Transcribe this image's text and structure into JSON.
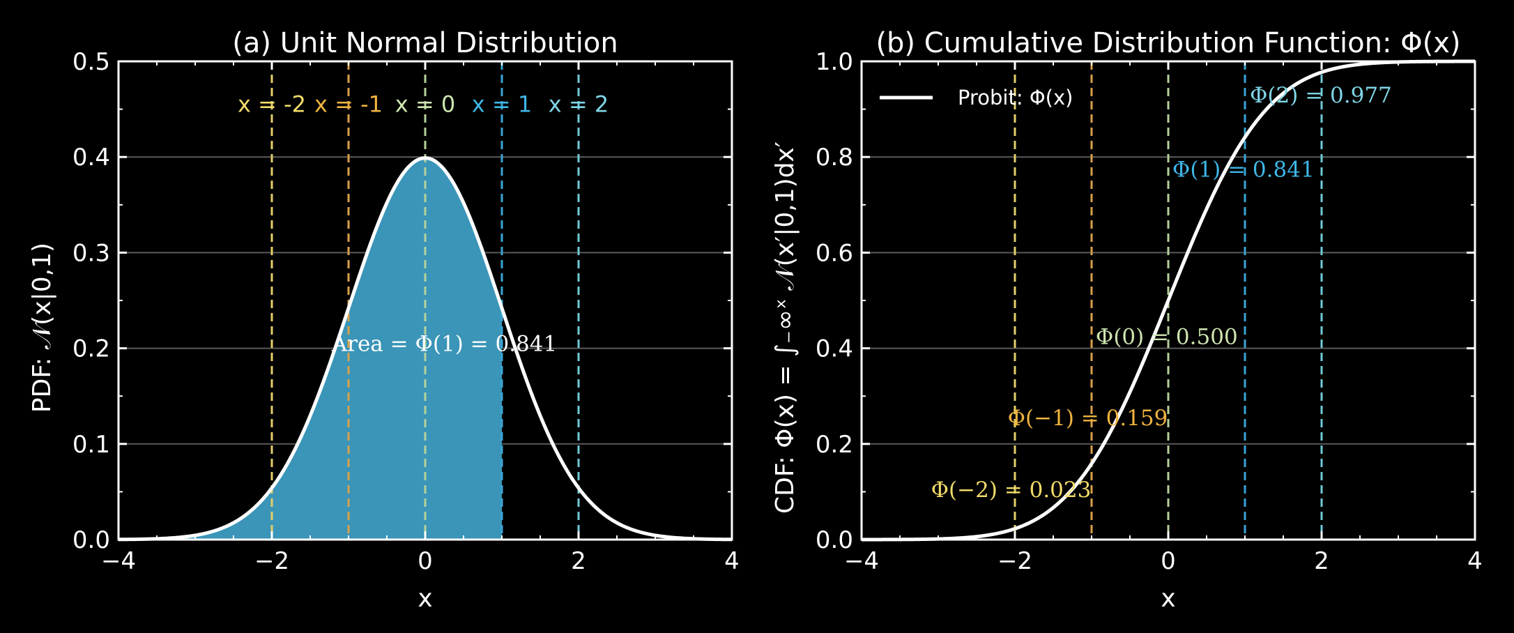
{
  "colors": {
    "background": "#000000",
    "curve": "#ffffff",
    "fill": "#3a95b8",
    "grid": "#5a5a5a",
    "line_m2": "#e3cf6a",
    "line_m1": "#d9a14a",
    "line_0": "#b5d19a",
    "line_1": "#3aa5d6",
    "line_2": "#6fcad6",
    "annot_m2": "#f2dc6a",
    "annot_m1": "#f0b43f",
    "annot_0": "#cfe6b0",
    "annot_1": "#3fb7e8",
    "annot_2": "#7fd6e6"
  },
  "chart_data": [
    {
      "type": "area",
      "title": "(a) Unit Normal Distribution",
      "xlabel": "x",
      "ylabel": "PDF: 𝒩(x|0,1)",
      "xlim": [
        -4,
        4
      ],
      "ylim": [
        0,
        0.5
      ],
      "xticks": [
        -4,
        -2,
        0,
        2,
        4
      ],
      "xtick_labels": [
        "−4",
        "−2",
        "0",
        "2",
        "4"
      ],
      "yticks": [
        0.0,
        0.1,
        0.2,
        0.3,
        0.4,
        0.5
      ],
      "ytick_labels": [
        "0.0",
        "0.1",
        "0.2",
        "0.3",
        "0.4",
        "0.5"
      ],
      "grid": "horizontal",
      "series": [
        {
          "x": [
            -4.0,
            -3.5,
            -3.0,
            -2.5,
            -2.0,
            -1.5,
            -1.0,
            -0.5,
            0.0,
            0.5,
            1.0,
            1.5,
            2.0,
            2.5,
            3.0,
            3.5,
            4.0
          ],
          "y": [
            0.0001,
            0.0009,
            0.0044,
            0.0175,
            0.054,
            0.1295,
            0.242,
            0.3521,
            0.3989,
            0.3521,
            0.242,
            0.1295,
            0.054,
            0.0175,
            0.0044,
            0.0009,
            0.0001
          ]
        }
      ],
      "shaded_region": [
        -4,
        1
      ],
      "vlines": [
        {
          "x": -2,
          "label": "x = -2",
          "color_key": "line_m2",
          "label_color_key": "annot_m2"
        },
        {
          "x": -1,
          "label": "x = -1",
          "color_key": "line_m1",
          "label_color_key": "annot_m1"
        },
        {
          "x": 0,
          "label": "x = 0",
          "color_key": "line_0",
          "label_color_key": "annot_0"
        },
        {
          "x": 1,
          "label": "x = 1",
          "color_key": "line_1",
          "label_color_key": "annot_1"
        },
        {
          "x": 2,
          "label": "x = 2",
          "color_key": "line_2",
          "label_color_key": "annot_2"
        }
      ],
      "vline_label_y": 0.455,
      "annotations": [
        {
          "text": "Area = Φ(1) = 0.841",
          "x": 0.25,
          "y": 0.205,
          "color_key": "curve"
        }
      ]
    },
    {
      "type": "line",
      "title": "(b) Cumulative Distribution Function: Φ(x)",
      "xlabel": "x",
      "ylabel": "CDF: Φ(x) = ∫₋∞ˣ 𝒩(x′|0,1)dx′",
      "xlim": [
        -4,
        4
      ],
      "ylim": [
        0,
        1.0
      ],
      "xticks": [
        -4,
        -2,
        0,
        2,
        4
      ],
      "xtick_labels": [
        "−4",
        "−2",
        "0",
        "2",
        "4"
      ],
      "yticks": [
        0.0,
        0.2,
        0.4,
        0.6,
        0.8,
        1.0
      ],
      "ytick_labels": [
        "0.0",
        "0.2",
        "0.4",
        "0.6",
        "0.8",
        "1.0"
      ],
      "grid": "horizontal",
      "legend": "top-left",
      "series": [
        {
          "name": "Probit: Φ(x)",
          "x": [
            -4.0,
            -3.5,
            -3.0,
            -2.5,
            -2.0,
            -1.5,
            -1.0,
            -0.5,
            0.0,
            0.5,
            1.0,
            1.5,
            2.0,
            2.5,
            3.0,
            3.5,
            4.0
          ],
          "y": [
            0.0,
            0.0002,
            0.0013,
            0.0062,
            0.0228,
            0.0668,
            0.1587,
            0.3085,
            0.5,
            0.6915,
            0.8413,
            0.9332,
            0.9772,
            0.9938,
            0.9987,
            0.9998,
            1.0
          ]
        }
      ],
      "vlines": [
        {
          "x": -2,
          "color_key": "line_m2"
        },
        {
          "x": -1,
          "color_key": "line_m1"
        },
        {
          "x": 0,
          "color_key": "line_0"
        },
        {
          "x": 1,
          "color_key": "line_1"
        },
        {
          "x": 2,
          "color_key": "line_2"
        }
      ],
      "annotations": [
        {
          "text": "Φ(−2) = 0.023",
          "x": -2.05,
          "y": 0.105,
          "color_key": "annot_m2"
        },
        {
          "text": "Φ(−1) = 0.159",
          "x": -1.05,
          "y": 0.255,
          "color_key": "annot_m1"
        },
        {
          "text": "Φ(0) = 0.500",
          "x": -0.02,
          "y": 0.425,
          "color_key": "annot_0"
        },
        {
          "text": "Φ(1) = 0.841",
          "x": 0.98,
          "y": 0.775,
          "color_key": "annot_1"
        },
        {
          "text": "Φ(2) = 0.977",
          "x": 1.99,
          "y": 0.93,
          "color_key": "annot_2"
        }
      ]
    }
  ]
}
